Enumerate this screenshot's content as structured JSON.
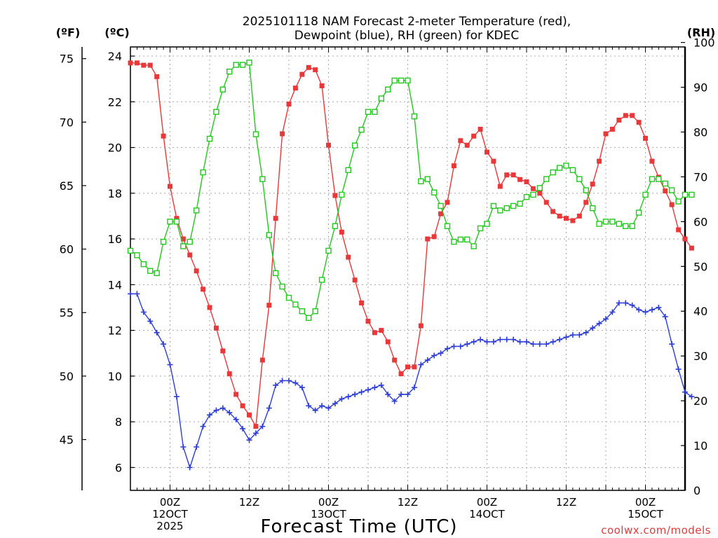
{
  "chart_data": {
    "type": "line",
    "title_line1": "2025101118 NAM Forecast 2-meter Temperature (red),",
    "title_line2": "Dewpoint (blue), RH (green) for KDEC",
    "xlabel": "Forecast Time (UTC)",
    "credit": "coolwx.com/models",
    "units": {
      "fahrenheit": "(ºF)",
      "celsius": "(ºC)",
      "rh": "(RH)"
    },
    "x_start": "2025-10-11 18Z",
    "x_step_hours": 1,
    "xlim_hours": [
      0,
      84
    ],
    "x_ticks": [
      {
        "hour": 6,
        "lines": [
          "00Z",
          "12OCT",
          "2025"
        ]
      },
      {
        "hour": 18,
        "lines": [
          "12Z"
        ]
      },
      {
        "hour": 30,
        "lines": [
          "00Z",
          "13OCT"
        ]
      },
      {
        "hour": 42,
        "lines": [
          "12Z"
        ]
      },
      {
        "hour": 54,
        "lines": [
          "00Z",
          "14OCT"
        ]
      },
      {
        "hour": 66,
        "lines": [
          "12Z"
        ]
      },
      {
        "hour": 78,
        "lines": [
          "00Z",
          "15OCT"
        ]
      }
    ],
    "y_celsius": {
      "ylim": [
        5,
        24.4
      ],
      "ticks": [
        6,
        8,
        10,
        12,
        14,
        16,
        18,
        20,
        22,
        24
      ]
    },
    "y_fahrenheit": {
      "ticks": [
        45,
        50,
        55,
        60,
        65,
        70,
        75
      ]
    },
    "y_rh": {
      "ylim": [
        0,
        99
      ],
      "ticks": [
        0,
        10,
        20,
        30,
        40,
        50,
        60,
        70,
        80,
        90,
        100
      ]
    },
    "grid": true,
    "series": [
      {
        "key": "temperature",
        "color": "#e8383a",
        "marker": "filled-square",
        "axis": "celsius",
        "values": [
          23.7,
          23.7,
          23.6,
          23.6,
          23.1,
          20.5,
          18.3,
          16.9,
          16.0,
          15.3,
          14.6,
          13.8,
          13.0,
          12.1,
          11.1,
          10.1,
          9.2,
          8.7,
          8.3,
          7.8,
          10.7,
          13.1,
          16.9,
          20.6,
          21.9,
          22.6,
          23.2,
          23.5,
          23.4,
          22.7,
          20.1,
          17.9,
          16.3,
          15.2,
          14.2,
          13.2,
          12.4,
          11.9,
          12.0,
          11.5,
          10.7,
          10.1,
          10.4,
          10.4,
          12.2,
          16.0,
          16.1,
          17.1,
          17.6,
          19.2,
          20.3,
          20.1,
          20.5,
          20.8,
          19.8,
          19.4,
          18.3,
          18.8,
          18.8,
          18.6,
          18.5,
          18.2,
          18.0,
          17.6,
          17.2,
          17.0,
          16.9,
          16.8,
          17.0,
          17.6,
          18.4,
          19.4,
          20.6,
          20.8,
          21.2,
          21.4,
          21.4,
          21.1,
          20.4,
          19.4,
          18.7,
          18.1,
          17.5,
          16.4,
          16.0,
          15.6
        ]
      },
      {
        "key": "dewpoint",
        "color": "#2c3ed6",
        "marker": "plus",
        "axis": "celsius",
        "values": [
          13.6,
          13.6,
          12.8,
          12.4,
          11.9,
          11.4,
          10.5,
          9.1,
          6.9,
          6.0,
          6.9,
          7.8,
          8.3,
          8.5,
          8.6,
          8.4,
          8.1,
          7.7,
          7.2,
          7.5,
          7.8,
          8.6,
          9.6,
          9.8,
          9.8,
          9.7,
          9.5,
          8.7,
          8.5,
          8.7,
          8.6,
          8.8,
          9.0,
          9.1,
          9.2,
          9.3,
          9.4,
          9.5,
          9.6,
          9.2,
          8.9,
          9.2,
          9.2,
          9.5,
          10.5,
          10.7,
          10.9,
          11.0,
          11.2,
          11.3,
          11.3,
          11.4,
          11.5,
          11.6,
          11.5,
          11.5,
          11.6,
          11.6,
          11.6,
          11.5,
          11.5,
          11.4,
          11.4,
          11.4,
          11.5,
          11.6,
          11.7,
          11.8,
          11.8,
          11.9,
          12.1,
          12.3,
          12.5,
          12.8,
          13.2,
          13.2,
          13.1,
          12.9,
          12.8,
          12.9,
          13.0,
          12.6,
          11.4,
          10.3,
          9.3,
          9.1
        ]
      },
      {
        "key": "rh",
        "color": "#22c81e",
        "marker": "open-square",
        "axis": "rh",
        "values": [
          53.5,
          52.5,
          50.5,
          49.0,
          48.5,
          55.5,
          60.0,
          60.0,
          54.5,
          55.5,
          62.5,
          71.0,
          78.5,
          84.5,
          89.5,
          93.5,
          95.0,
          95.0,
          95.5,
          79.5,
          69.5,
          57.0,
          48.5,
          45.5,
          43.0,
          41.5,
          40.0,
          38.5,
          40.0,
          47.0,
          53.5,
          59.0,
          66.0,
          71.5,
          77.0,
          80.5,
          84.5,
          84.5,
          87.5,
          89.5,
          91.5,
          91.5,
          91.5,
          83.5,
          69.0,
          69.5,
          66.5,
          63.5,
          59.0,
          55.5,
          56.0,
          56.0,
          54.5,
          58.5,
          59.5,
          63.5,
          62.5,
          63.0,
          63.5,
          64.0,
          65.5,
          66.0,
          67.5,
          69.5,
          71.0,
          72.0,
          72.5,
          71.5,
          69.5,
          67.0,
          63.0,
          59.5,
          60.0,
          60.0,
          59.5,
          59.0,
          59.0,
          62.0,
          66.0,
          69.5,
          69.5,
          68.5,
          67.0,
          64.5,
          66.0,
          66.0
        ]
      }
    ]
  }
}
